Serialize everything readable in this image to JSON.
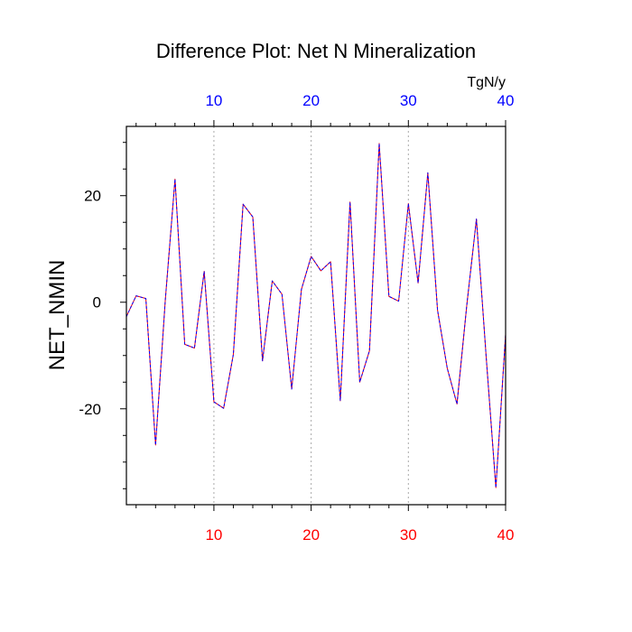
{
  "chart_data": {
    "type": "line",
    "title": "Difference Plot: Net N Mineralization",
    "ylabel": "NET_NMIN",
    "units_label": "TgN/y",
    "xlim": [
      1,
      40
    ],
    "ylim": [
      -38,
      33
    ],
    "x_ticks": [
      10,
      20,
      30,
      40
    ],
    "x_tick_labels": [
      "10",
      "20",
      "30",
      "40"
    ],
    "y_ticks": [
      -20,
      0,
      20
    ],
    "y_tick_labels": [
      "-20",
      "0",
      "20"
    ],
    "grid": "vertical dotted at major x ticks",
    "colors": {
      "bottom_axis_labels": "#ff0000",
      "top_axis_labels": "#0000ff",
      "series_a": "#ff0000",
      "series_b": "#0000ff"
    },
    "series": [
      {
        "name": "series_a",
        "x": [
          1,
          2,
          3,
          4,
          5,
          6,
          7,
          8,
          9,
          10,
          11,
          12,
          13,
          14,
          15,
          16,
          17,
          18,
          19,
          20,
          21,
          22,
          23,
          24,
          25,
          26,
          27,
          28,
          29,
          30,
          31,
          32,
          33,
          34,
          35,
          36,
          37,
          38,
          39,
          40
        ],
        "values": [
          -2.7,
          1.2,
          0.7,
          -26.8,
          0.4,
          23.1,
          -7.9,
          -8.6,
          5.8,
          -18.7,
          -19.9,
          -9.8,
          18.4,
          16.0,
          -11.0,
          4.0,
          1.5,
          -16.3,
          2.4,
          8.6,
          5.9,
          7.6,
          -18.5,
          18.8,
          -15.0,
          -9.1,
          29.8,
          1.1,
          0.2,
          18.5,
          3.6,
          24.3,
          -1.5,
          -12.4,
          -19.1,
          -0.7,
          15.6,
          -10.2,
          -34.8,
          -6.0
        ]
      },
      {
        "name": "series_b",
        "x": [
          1,
          2,
          3,
          4,
          5,
          6,
          7,
          8,
          9,
          10,
          11,
          12,
          13,
          14,
          15,
          16,
          17,
          18,
          19,
          20,
          21,
          22,
          23,
          24,
          25,
          26,
          27,
          28,
          29,
          30,
          31,
          32,
          33,
          34,
          35,
          36,
          37,
          38,
          39,
          40
        ],
        "values": [
          -2.7,
          1.2,
          0.7,
          -26.8,
          0.4,
          23.1,
          -7.9,
          -8.6,
          5.8,
          -18.7,
          -19.9,
          -9.8,
          18.4,
          16.0,
          -11.0,
          4.0,
          1.5,
          -16.3,
          2.4,
          8.6,
          5.9,
          7.6,
          -18.5,
          18.8,
          -15.0,
          -9.1,
          29.8,
          1.1,
          0.2,
          18.5,
          3.6,
          24.3,
          -1.5,
          -12.4,
          -19.1,
          -0.7,
          15.6,
          -10.2,
          -34.8,
          -6.0
        ]
      }
    ]
  }
}
